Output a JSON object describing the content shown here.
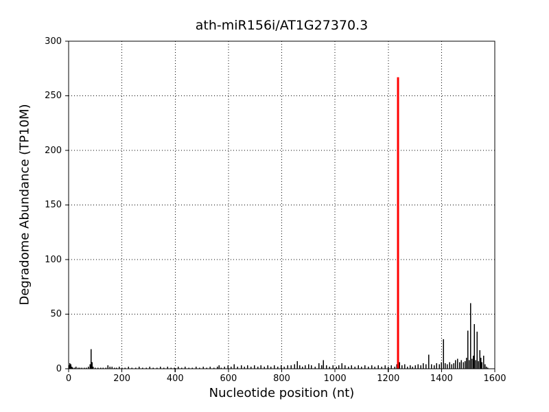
{
  "chart_data": {
    "type": "bar",
    "subtype": "degradome-t-plot-vertical-sticks",
    "title": "ath-miR156i/AT1G27370.3",
    "xlabel": "Nucleotide position (nt)",
    "ylabel": "Degradome Abundance (TP10M)",
    "xlim": [
      0,
      1600
    ],
    "ylim": [
      0,
      300
    ],
    "x_ticks": [
      0,
      200,
      400,
      600,
      800,
      1000,
      1200,
      1400,
      1600
    ],
    "y_ticks": [
      0,
      50,
      100,
      150,
      200,
      250,
      300
    ],
    "grid": "dotted",
    "background_color": "#ffffff",
    "axis_color": "#000000",
    "legend": "none",
    "series": [
      {
        "name": "degradome-signal",
        "color": "#000000",
        "points": [
          [
            2,
            3
          ],
          [
            5,
            5
          ],
          [
            8,
            4
          ],
          [
            12,
            2
          ],
          [
            16,
            1
          ],
          [
            22,
            1
          ],
          [
            28,
            2
          ],
          [
            35,
            1
          ],
          [
            42,
            1
          ],
          [
            50,
            1
          ],
          [
            58,
            1
          ],
          [
            66,
            1
          ],
          [
            74,
            2
          ],
          [
            80,
            4
          ],
          [
            85,
            18
          ],
          [
            88,
            6
          ],
          [
            92,
            2
          ],
          [
            100,
            1
          ],
          [
            110,
            1
          ],
          [
            120,
            1
          ],
          [
            130,
            1
          ],
          [
            140,
            1
          ],
          [
            148,
            3
          ],
          [
            155,
            2
          ],
          [
            163,
            2
          ],
          [
            172,
            1
          ],
          [
            180,
            1
          ],
          [
            190,
            2
          ],
          [
            200,
            1
          ],
          [
            212,
            1
          ],
          [
            225,
            2
          ],
          [
            238,
            1
          ],
          [
            252,
            1
          ],
          [
            265,
            2
          ],
          [
            278,
            1
          ],
          [
            292,
            1
          ],
          [
            305,
            2
          ],
          [
            318,
            1
          ],
          [
            332,
            1
          ],
          [
            345,
            2
          ],
          [
            358,
            1
          ],
          [
            372,
            2
          ],
          [
            385,
            1
          ],
          [
            398,
            1
          ],
          [
            412,
            2
          ],
          [
            425,
            1
          ],
          [
            438,
            2
          ],
          [
            452,
            1
          ],
          [
            465,
            1
          ],
          [
            478,
            2
          ],
          [
            492,
            1
          ],
          [
            505,
            2
          ],
          [
            518,
            1
          ],
          [
            532,
            2
          ],
          [
            545,
            1
          ],
          [
            558,
            2
          ],
          [
            565,
            3
          ],
          [
            572,
            1
          ],
          [
            585,
            2
          ],
          [
            598,
            3
          ],
          [
            610,
            2
          ],
          [
            622,
            4
          ],
          [
            635,
            2
          ],
          [
            648,
            3
          ],
          [
            660,
            2
          ],
          [
            672,
            3
          ],
          [
            685,
            2
          ],
          [
            698,
            3
          ],
          [
            710,
            2
          ],
          [
            722,
            3
          ],
          [
            735,
            2
          ],
          [
            748,
            3
          ],
          [
            760,
            2
          ],
          [
            772,
            3
          ],
          [
            785,
            2
          ],
          [
            798,
            3
          ],
          [
            810,
            2
          ],
          [
            822,
            3
          ],
          [
            835,
            3
          ],
          [
            848,
            4
          ],
          [
            858,
            7
          ],
          [
            868,
            3
          ],
          [
            878,
            2
          ],
          [
            888,
            3
          ],
          [
            901,
            4
          ],
          [
            912,
            3
          ],
          [
            925,
            2
          ],
          [
            940,
            5
          ],
          [
            950,
            3
          ],
          [
            957,
            8
          ],
          [
            968,
            3
          ],
          [
            980,
            2
          ],
          [
            992,
            3
          ],
          [
            1005,
            2
          ],
          [
            1015,
            3
          ],
          [
            1026,
            5
          ],
          [
            1038,
            3
          ],
          [
            1050,
            2
          ],
          [
            1062,
            3
          ],
          [
            1075,
            2
          ],
          [
            1088,
            3
          ],
          [
            1100,
            2
          ],
          [
            1112,
            3
          ],
          [
            1125,
            2
          ],
          [
            1138,
            3
          ],
          [
            1150,
            2
          ],
          [
            1162,
            3
          ],
          [
            1175,
            2
          ],
          [
            1188,
            3
          ],
          [
            1200,
            2
          ],
          [
            1212,
            3
          ],
          [
            1225,
            2
          ],
          [
            1232,
            4
          ],
          [
            1243,
            6
          ],
          [
            1252,
            3
          ],
          [
            1262,
            4
          ],
          [
            1272,
            2
          ],
          [
            1282,
            3
          ],
          [
            1292,
            2
          ],
          [
            1302,
            3
          ],
          [
            1312,
            4
          ],
          [
            1322,
            3
          ],
          [
            1332,
            5
          ],
          [
            1342,
            4
          ],
          [
            1352,
            13
          ],
          [
            1362,
            4
          ],
          [
            1372,
            3
          ],
          [
            1382,
            5
          ],
          [
            1392,
            4
          ],
          [
            1400,
            6
          ],
          [
            1407,
            27
          ],
          [
            1414,
            5
          ],
          [
            1422,
            4
          ],
          [
            1430,
            6
          ],
          [
            1438,
            4
          ],
          [
            1446,
            5
          ],
          [
            1453,
            8
          ],
          [
            1460,
            9
          ],
          [
            1468,
            6
          ],
          [
            1475,
            8
          ],
          [
            1482,
            6
          ],
          [
            1488,
            7
          ],
          [
            1494,
            10
          ],
          [
            1499,
            35
          ],
          [
            1504,
            8
          ],
          [
            1509,
            60
          ],
          [
            1514,
            9
          ],
          [
            1519,
            12
          ],
          [
            1523,
            41
          ],
          [
            1528,
            8
          ],
          [
            1534,
            34
          ],
          [
            1539,
            7
          ],
          [
            1544,
            17
          ],
          [
            1548,
            10
          ],
          [
            1552,
            6
          ],
          [
            1558,
            12
          ],
          [
            1563,
            4
          ],
          [
            1568,
            2
          ],
          [
            1574,
            1
          ]
        ]
      },
      {
        "name": "mirna-cleavage-site",
        "color": "#ff0000",
        "points": [
          [
            1237,
            267
          ]
        ]
      }
    ]
  }
}
